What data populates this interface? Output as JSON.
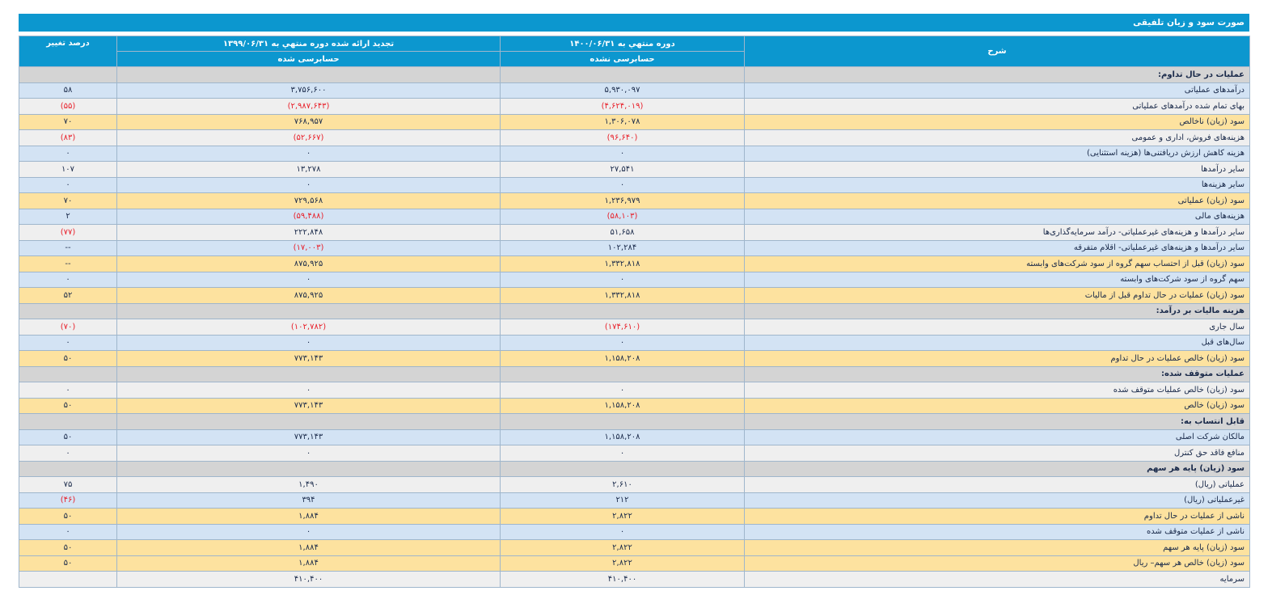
{
  "title": "صورت سود و زیان تلفیقی",
  "columns": {
    "desc": "شرح",
    "period1": "دوره منتهي به ۱۴۰۰/۰۶/۳۱",
    "period1_sub": "حسابرسی نشده",
    "period2": "تجدید ارائه شده دوره منتهي به ۱۳۹۹/۰۶/۳۱",
    "period2_sub": "حسابرسی شده",
    "change": "درصد تغییر"
  },
  "rows": [
    {
      "style": "section",
      "desc": "عملیات در حال تداوم:",
      "v1": "",
      "v2": "",
      "pct": ""
    },
    {
      "style": "blue",
      "desc": "درآمدهای عملیاتی",
      "v1": "۵,۹۳۰,۰۹۷",
      "v2": "۳,۷۵۶,۶۰۰",
      "pct": "۵۸"
    },
    {
      "style": "normal",
      "desc": "بهای تمام شده درآمدهای عملیاتی",
      "v1": "(۴,۶۲۴,۰۱۹)",
      "v2": "(۲,۹۸۷,۶۴۳)",
      "pct": "(۵۵)"
    },
    {
      "style": "gold",
      "desc": "سود (زیان) ناخالص",
      "v1": "۱,۳۰۶,۰۷۸",
      "v2": "۷۶۸,۹۵۷",
      "pct": "۷۰"
    },
    {
      "style": "normal",
      "desc": "هزینه‌های فروش، اداری و عمومی",
      "v1": "(۹۶,۶۴۰)",
      "v2": "(۵۲,۶۶۷)",
      "pct": "(۸۳)"
    },
    {
      "style": "blue",
      "desc": "هزینه کاهش ارزش دریافتنی‌ها (هزینه استثنایی)",
      "v1": "۰",
      "v2": "۰",
      "pct": "۰"
    },
    {
      "style": "normal",
      "desc": "سایر درآمدها",
      "v1": "۲۷,۵۴۱",
      "v2": "۱۳,۲۷۸",
      "pct": "۱۰۷"
    },
    {
      "style": "blue",
      "desc": "سایر هزینه‌ها",
      "v1": "۰",
      "v2": "۰",
      "pct": "۰"
    },
    {
      "style": "gold",
      "desc": "سود (زیان) عملیاتی",
      "v1": "۱,۲۳۶,۹۷۹",
      "v2": "۷۲۹,۵۶۸",
      "pct": "۷۰"
    },
    {
      "style": "blue",
      "desc": "هزینه‌های مالی",
      "v1": "(۵۸,۱۰۳)",
      "v2": "(۵۹,۴۸۸)",
      "pct": "۲"
    },
    {
      "style": "normal",
      "desc": "سایر درآمدها و هزینه‌های غیرعملیاتی- درآمد سرمایه‌گذاری‌ها",
      "v1": "۵۱,۶۵۸",
      "v2": "۲۲۲,۸۴۸",
      "pct": "(۷۷)"
    },
    {
      "style": "blue",
      "desc": "سایر درآمدها و هزینه‌های غیرعملیاتی- اقلام متفرقه",
      "v1": "۱۰۲,۲۸۴",
      "v2": "(۱۷,۰۰۳)",
      "pct": "--"
    },
    {
      "style": "gold",
      "desc": "سود (زیان) قبل از احتساب سهم گروه از سود شرکت‌های وابسته",
      "v1": "۱,۳۳۲,۸۱۸",
      "v2": "۸۷۵,۹۲۵",
      "pct": "--"
    },
    {
      "style": "blue",
      "desc": "سهم گروه از سود شرکت‌های وابسته",
      "v1": "۰",
      "v2": "۰",
      "pct": "۰"
    },
    {
      "style": "gold",
      "desc": "سود (زیان) عملیات در حال تداوم قبل از مالیات",
      "v1": "۱,۳۳۲,۸۱۸",
      "v2": "۸۷۵,۹۲۵",
      "pct": "۵۲"
    },
    {
      "style": "section",
      "desc": "هزینه مالیات بر درآمد:",
      "v1": "",
      "v2": "",
      "pct": ""
    },
    {
      "style": "normal",
      "desc": "سال جاری",
      "v1": "(۱۷۴,۶۱۰)",
      "v2": "(۱۰۲,۷۸۲)",
      "pct": "(۷۰)"
    },
    {
      "style": "blue",
      "desc": "سال‌های قبل",
      "v1": "۰",
      "v2": "۰",
      "pct": "۰"
    },
    {
      "style": "gold",
      "desc": "سود (زیان) خالص عملیات در حال تداوم",
      "v1": "۱,۱۵۸,۲۰۸",
      "v2": "۷۷۳,۱۴۳",
      "pct": "۵۰"
    },
    {
      "style": "section",
      "desc": "عملیات متوقف شده:",
      "v1": "",
      "v2": "",
      "pct": ""
    },
    {
      "style": "normal",
      "desc": "سود (زیان) خالص عملیات متوقف شده",
      "v1": "۰",
      "v2": "۰",
      "pct": "۰"
    },
    {
      "style": "gold",
      "desc": "سود (زیان) خالص",
      "v1": "۱,۱۵۸,۲۰۸",
      "v2": "۷۷۳,۱۴۳",
      "pct": "۵۰"
    },
    {
      "style": "section",
      "desc": "قابل انتساب به:",
      "v1": "",
      "v2": "",
      "pct": ""
    },
    {
      "style": "blue",
      "desc": "مالکان شرکت اصلی",
      "v1": "۱,۱۵۸,۲۰۸",
      "v2": "۷۷۳,۱۴۳",
      "pct": "۵۰"
    },
    {
      "style": "normal",
      "desc": "منافع فاقد حق کنترل",
      "v1": "۰",
      "v2": "۰",
      "pct": "۰"
    },
    {
      "style": "section",
      "desc": "سود (زیان) پایه هر سهم",
      "v1": "",
      "v2": "",
      "pct": ""
    },
    {
      "style": "normal",
      "desc": "عملیاتی (ریال)",
      "v1": "۲,۶۱۰",
      "v2": "۱,۴۹۰",
      "pct": "۷۵"
    },
    {
      "style": "blue",
      "desc": "غیرعملیاتی (ریال)",
      "v1": "۲۱۲",
      "v2": "۳۹۴",
      "pct": "(۴۶)"
    },
    {
      "style": "gold",
      "desc": "ناشی از عملیات در حال تداوم",
      "v1": "۲,۸۲۲",
      "v2": "۱,۸۸۴",
      "pct": "۵۰"
    },
    {
      "style": "blue",
      "desc": "ناشی از عملیات متوقف شده",
      "v1": "۰",
      "v2": "۰",
      "pct": "۰"
    },
    {
      "style": "gold",
      "desc": "سود (زیان) پایه هر سهم",
      "v1": "۲,۸۲۲",
      "v2": "۱,۸۸۴",
      "pct": "۵۰"
    },
    {
      "style": "gold",
      "desc": "سود (زیان) خالص هر سهم– ریال",
      "v1": "۲,۸۲۲",
      "v2": "۱,۸۸۴",
      "pct": "۵۰"
    },
    {
      "style": "normal",
      "desc": "سرمایه",
      "v1": "۴۱۰,۴۰۰",
      "v2": "۴۱۰,۴۰۰",
      "pct": ""
    }
  ]
}
